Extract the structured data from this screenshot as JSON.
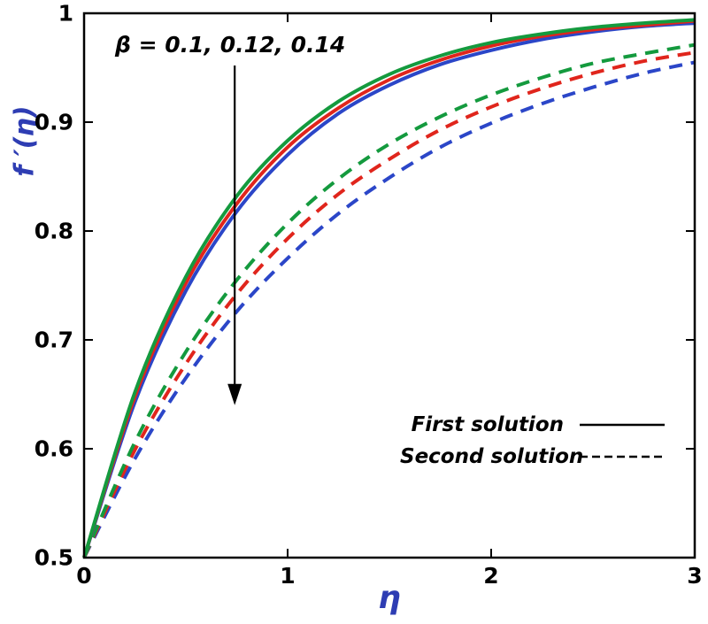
{
  "chart_data": {
    "type": "line",
    "title": "",
    "xlabel": "η",
    "ylabel": "f ′(η)",
    "xlim": [
      0,
      3
    ],
    "ylim": [
      0.5,
      1
    ],
    "xticks": [
      0,
      1,
      2,
      3
    ],
    "xtick_labels": [
      "0",
      "1",
      "2",
      "3"
    ],
    "yticks": [
      0.5,
      0.6,
      0.7,
      0.8,
      0.9,
      1
    ],
    "ytick_labels": [
      "0.5",
      "0.6",
      "0.7",
      "0.8",
      "0.9",
      "1"
    ],
    "grid": false,
    "axis_color": "#000000",
    "label_color": "#2e3db3",
    "background_color": "#ffffff",
    "x": [
      0,
      0.25,
      0.5,
      0.75,
      1,
      1.25,
      1.5,
      1.75,
      2,
      2.25,
      2.5,
      2.75,
      3
    ],
    "series": [
      {
        "name": "Second solution, β = 0.14",
        "solution": "second",
        "beta": 0.14,
        "style": "dashed",
        "color": "#2b46c8",
        "values": [
          0.5,
          0.591,
          0.665,
          0.726,
          0.775,
          0.816,
          0.849,
          0.877,
          0.899,
          0.917,
          0.932,
          0.945,
          0.955
        ]
      },
      {
        "name": "Second solution, β = 0.12",
        "solution": "second",
        "beta": 0.12,
        "style": "dashed",
        "color": "#e0251c",
        "values": [
          0.5,
          0.599,
          0.678,
          0.742,
          0.793,
          0.834,
          0.866,
          0.893,
          0.914,
          0.931,
          0.945,
          0.956,
          0.964
        ]
      },
      {
        "name": "Second solution, β = 0.1",
        "solution": "second",
        "beta": 0.1,
        "style": "dashed",
        "color": "#149a3e",
        "values": [
          0.5,
          0.606,
          0.689,
          0.755,
          0.807,
          0.848,
          0.88,
          0.905,
          0.925,
          0.941,
          0.954,
          0.963,
          0.971
        ]
      },
      {
        "name": "First solution, β = 0.14",
        "solution": "first",
        "beta": 0.14,
        "style": "solid",
        "color": "#2b46c8",
        "values": [
          0.5,
          0.643,
          0.745,
          0.818,
          0.87,
          0.908,
          0.934,
          0.953,
          0.966,
          0.976,
          0.983,
          0.988,
          0.991
        ]
      },
      {
        "name": "First solution, β = 0.12",
        "solution": "first",
        "beta": 0.12,
        "style": "solid",
        "color": "#e0251c",
        "values": [
          0.5,
          0.648,
          0.752,
          0.825,
          0.877,
          0.913,
          0.939,
          0.957,
          0.97,
          0.979,
          0.985,
          0.989,
          0.993
        ]
      },
      {
        "name": "First solution, β = 0.1",
        "solution": "first",
        "beta": 0.1,
        "style": "solid",
        "color": "#149a3e",
        "values": [
          0.5,
          0.652,
          0.758,
          0.832,
          0.883,
          0.919,
          0.944,
          0.961,
          0.973,
          0.981,
          0.987,
          0.991,
          0.994
        ]
      }
    ],
    "annotation": {
      "text": "β = 0.1, 0.12, 0.14",
      "arrow": {
        "x": 0.74,
        "y_from": 0.952,
        "y_to": 0.64
      }
    },
    "legend": [
      {
        "label": "First solution",
        "style": "solid"
      },
      {
        "label": "Second solution",
        "style": "dashed"
      }
    ],
    "legend_position": "lower right"
  }
}
